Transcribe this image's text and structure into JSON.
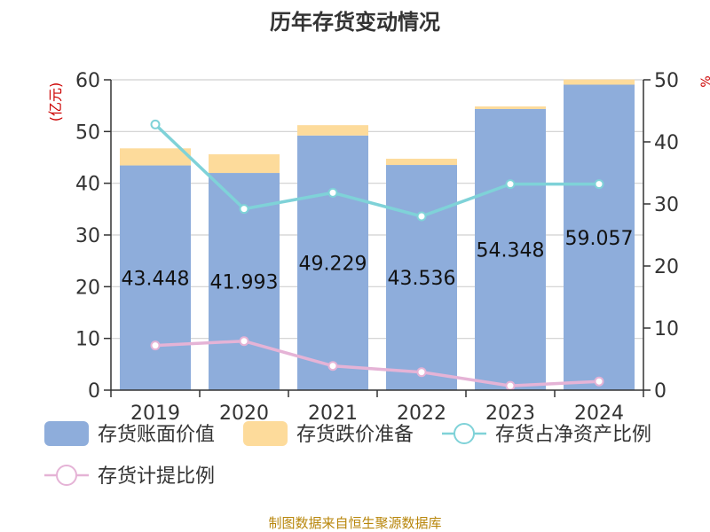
{
  "chart_data": {
    "type": "bar",
    "title": "历年存货变动情况",
    "categories": [
      "2019",
      "2020",
      "2021",
      "2022",
      "2023",
      "2024"
    ],
    "y_left_label": "(亿元)",
    "y_right_label": "%",
    "y_left_range": [
      0,
      60
    ],
    "y_left_ticks": [
      "0",
      "10",
      "20",
      "30",
      "40",
      "50",
      "60"
    ],
    "y_right_range": [
      0,
      50
    ],
    "y_right_ticks": [
      "0",
      "10",
      "20",
      "30",
      "40",
      "50"
    ],
    "grid": true,
    "legend_position": "bottom",
    "series": [
      {
        "name": "存货账面价值",
        "kind": "bar",
        "axis": "left",
        "color": "#8eaddb",
        "values": [
          43.448,
          41.993,
          49.229,
          43.536,
          54.348,
          59.057
        ],
        "labels": [
          "43.448",
          "41.993",
          "49.229",
          "43.536",
          "54.348",
          "59.057"
        ]
      },
      {
        "name": "存货跌价准备",
        "kind": "bar",
        "axis": "left",
        "color": "#fddb9b",
        "values": [
          3.3,
          3.6,
          2.0,
          1.2,
          0.5,
          1.0
        ]
      },
      {
        "name": "存货占净资产比例",
        "kind": "line",
        "axis": "right",
        "color": "#7fd2d8",
        "values": [
          42.8,
          29.2,
          31.8,
          28.0,
          33.2,
          33.2
        ]
      },
      {
        "name": "存货计提比例",
        "kind": "line",
        "axis": "right",
        "color": "#e5b3d6",
        "values": [
          7.2,
          7.9,
          3.9,
          2.9,
          0.7,
          1.4
        ]
      }
    ]
  },
  "footer": {
    "source": "制图数据来自恒生聚源数据库"
  }
}
